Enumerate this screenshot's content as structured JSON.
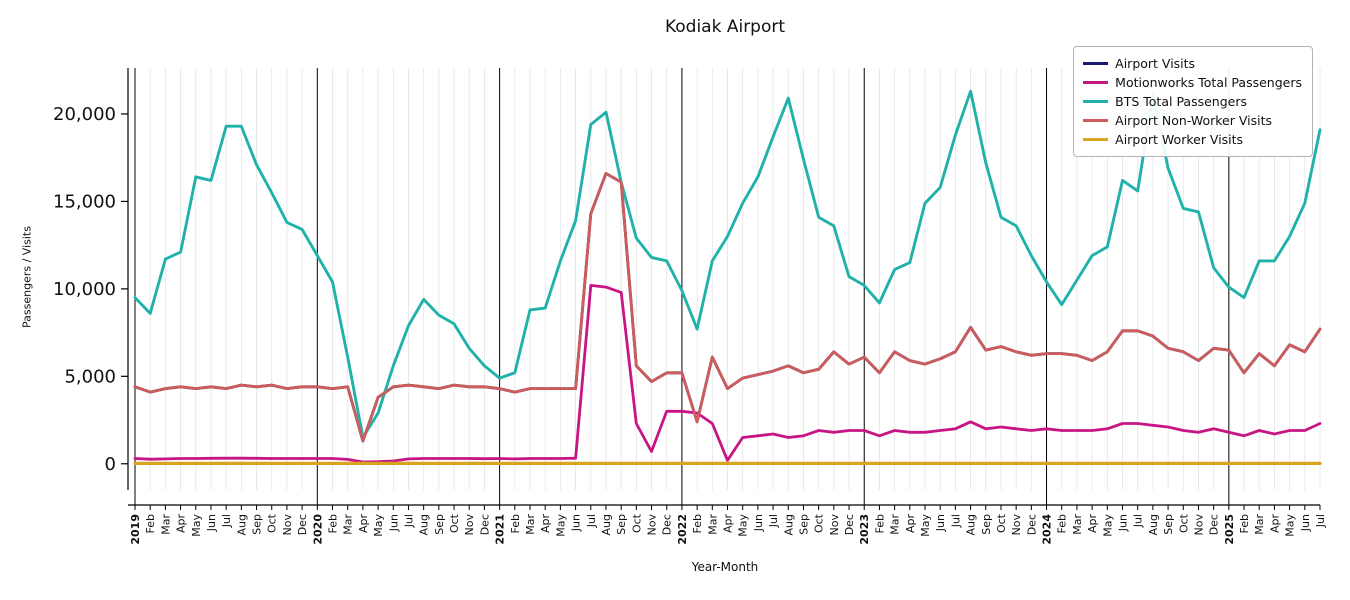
{
  "chart_data": {
    "type": "line",
    "title": "Kodiak Airport",
    "xlabel": "Year-Month",
    "ylabel": "Passengers / Visits",
    "ylim": [
      -1500,
      22800
    ],
    "yticks": [
      0,
      5000,
      10000,
      15000,
      20000
    ],
    "ytick_labels": [
      "0",
      "5,000",
      "10,000",
      "15,000",
      "20,000"
    ],
    "x_start": "2019-01",
    "x_end": "2025-07",
    "grid": "light vertical gridline at every month; solid black separator line at each January",
    "legend_position": "upper right",
    "xtick_labels": [
      "2019",
      "Feb",
      "Mar",
      "Apr",
      "May",
      "Jun",
      "Jul",
      "Aug",
      "Sep",
      "Oct",
      "Nov",
      "Dec",
      "2020",
      "Feb",
      "Mar",
      "Apr",
      "May",
      "Jun",
      "Jul",
      "Aug",
      "Sep",
      "Oct",
      "Nov",
      "Dec",
      "2021",
      "Feb",
      "Mar",
      "Apr",
      "May",
      "Jun",
      "Jul",
      "Aug",
      "Sep",
      "Oct",
      "Nov",
      "Dec",
      "2022",
      "Feb",
      "Mar",
      "Apr",
      "May",
      "Jun",
      "Jul",
      "Aug",
      "Sep",
      "Oct",
      "Nov",
      "Dec",
      "2023",
      "Feb",
      "Mar",
      "Apr",
      "May",
      "Jun",
      "Jul",
      "Aug",
      "Sep",
      "Oct",
      "Nov",
      "Dec",
      "2024",
      "Feb",
      "Mar",
      "Apr",
      "May",
      "Jun",
      "Jul",
      "Aug",
      "Sep",
      "Oct",
      "Nov",
      "Dec",
      "2025",
      "Feb",
      "Mar",
      "Apr",
      "May",
      "Jun",
      "Jul"
    ],
    "series": [
      {
        "name": "Airport Visits",
        "color": "#191970",
        "width": 2.8,
        "note": "line coincides with Airport Non-Worker Visits and is hidden underneath it",
        "values": [
          4400,
          4100,
          4300,
          4400,
          4300,
          4400,
          4300,
          4500,
          4400,
          4500,
          4300,
          4400,
          4400,
          4300,
          4400,
          1300,
          3800,
          4400,
          4500,
          4400,
          4300,
          4500,
          4400,
          4400,
          4300,
          4100,
          4300,
          4300,
          4300,
          4300,
          14300,
          16600,
          16100,
          5600,
          4700,
          5200,
          5200,
          2400,
          6100,
          4300,
          4900,
          5100,
          5300,
          5600,
          5200,
          5400,
          6400,
          5700,
          6100,
          5200,
          6400,
          5900,
          5700,
          6000,
          6400,
          7800,
          6500,
          6700,
          6400,
          6200,
          6300,
          6300,
          6200,
          5900,
          6400,
          7600,
          7600,
          7300,
          6600,
          6400,
          5900,
          6600,
          6500,
          5200,
          6300,
          5600,
          6800,
          6400,
          7700
        ]
      },
      {
        "name": "Motionworks Total Passengers",
        "color": "#C71585",
        "width": 2.8,
        "values": [
          300,
          260,
          280,
          300,
          300,
          310,
          320,
          320,
          310,
          300,
          300,
          300,
          300,
          300,
          250,
          100,
          120,
          160,
          280,
          300,
          300,
          300,
          300,
          290,
          300,
          280,
          300,
          300,
          300,
          320,
          10200,
          10100,
          9800,
          2300,
          700,
          3000,
          3000,
          2900,
          2300,
          200,
          1500,
          1600,
          1700,
          1500,
          1600,
          1900,
          1800,
          1900,
          1900,
          1600,
          1900,
          1800,
          1800,
          1900,
          2000,
          2400,
          2000,
          2100,
          2000,
          1900,
          2000,
          1900,
          1900,
          1900,
          2000,
          2300,
          2300,
          2200,
          2100,
          1900,
          1800,
          2000,
          1800,
          1600,
          1900,
          1700,
          1900,
          1900,
          2300
        ]
      },
      {
        "name": "BTS Total Passengers",
        "color": "#20B2AA",
        "width": 2.9,
        "values": [
          9500,
          8600,
          11700,
          12100,
          16400,
          16200,
          19300,
          19300,
          17100,
          15500,
          13800,
          13400,
          11900,
          10400,
          6100,
          1500,
          2900,
          5600,
          7900,
          9400,
          8500,
          8000,
          6600,
          5600,
          4900,
          5200,
          8800,
          8900,
          11600,
          13900,
          19400,
          20100,
          16100,
          12900,
          11800,
          11600,
          9900,
          7700,
          11600,
          13000,
          14900,
          16400,
          18700,
          20900,
          17400,
          14100,
          13600,
          10700,
          10200,
          9200,
          11100,
          11500,
          14900,
          15800,
          18800,
          21300,
          17200,
          14100,
          13600,
          11900,
          10400,
          9100,
          10500,
          11900,
          12400,
          16200,
          15600,
          21100,
          16900,
          14600,
          14400,
          11200,
          10100,
          9500,
          11600,
          11600,
          13000,
          14900,
          19100
        ]
      },
      {
        "name": "Airport Non-Worker Visits",
        "color": "#CD5C5C",
        "width": 2.8,
        "values": [
          4400,
          4100,
          4300,
          4400,
          4300,
          4400,
          4300,
          4500,
          4400,
          4500,
          4300,
          4400,
          4400,
          4300,
          4400,
          1300,
          3800,
          4400,
          4500,
          4400,
          4300,
          4500,
          4400,
          4400,
          4300,
          4100,
          4300,
          4300,
          4300,
          4300,
          14300,
          16600,
          16100,
          5600,
          4700,
          5200,
          5200,
          2400,
          6100,
          4300,
          4900,
          5100,
          5300,
          5600,
          5200,
          5400,
          6400,
          5700,
          6100,
          5200,
          6400,
          5900,
          5700,
          6000,
          6400,
          7800,
          6500,
          6700,
          6400,
          6200,
          6300,
          6300,
          6200,
          5900,
          6400,
          7600,
          7600,
          7300,
          6600,
          6400,
          5900,
          6600,
          6500,
          5200,
          6300,
          5600,
          6800,
          6400,
          7700
        ]
      },
      {
        "name": "Airport Worker Visits",
        "color": "#DAA520",
        "width": 3.2,
        "values": [
          20,
          20,
          20,
          20,
          20,
          20,
          20,
          20,
          20,
          20,
          20,
          20,
          20,
          20,
          20,
          20,
          20,
          20,
          20,
          20,
          20,
          20,
          20,
          20,
          20,
          20,
          20,
          20,
          20,
          20,
          20,
          20,
          20,
          20,
          20,
          20,
          20,
          20,
          20,
          20,
          20,
          20,
          20,
          20,
          20,
          20,
          20,
          20,
          20,
          20,
          20,
          20,
          20,
          20,
          20,
          20,
          20,
          20,
          20,
          20,
          20,
          20,
          20,
          20,
          20,
          20,
          20,
          20,
          20,
          20,
          20,
          20,
          20,
          20,
          20,
          20,
          20,
          20,
          20
        ]
      }
    ]
  }
}
